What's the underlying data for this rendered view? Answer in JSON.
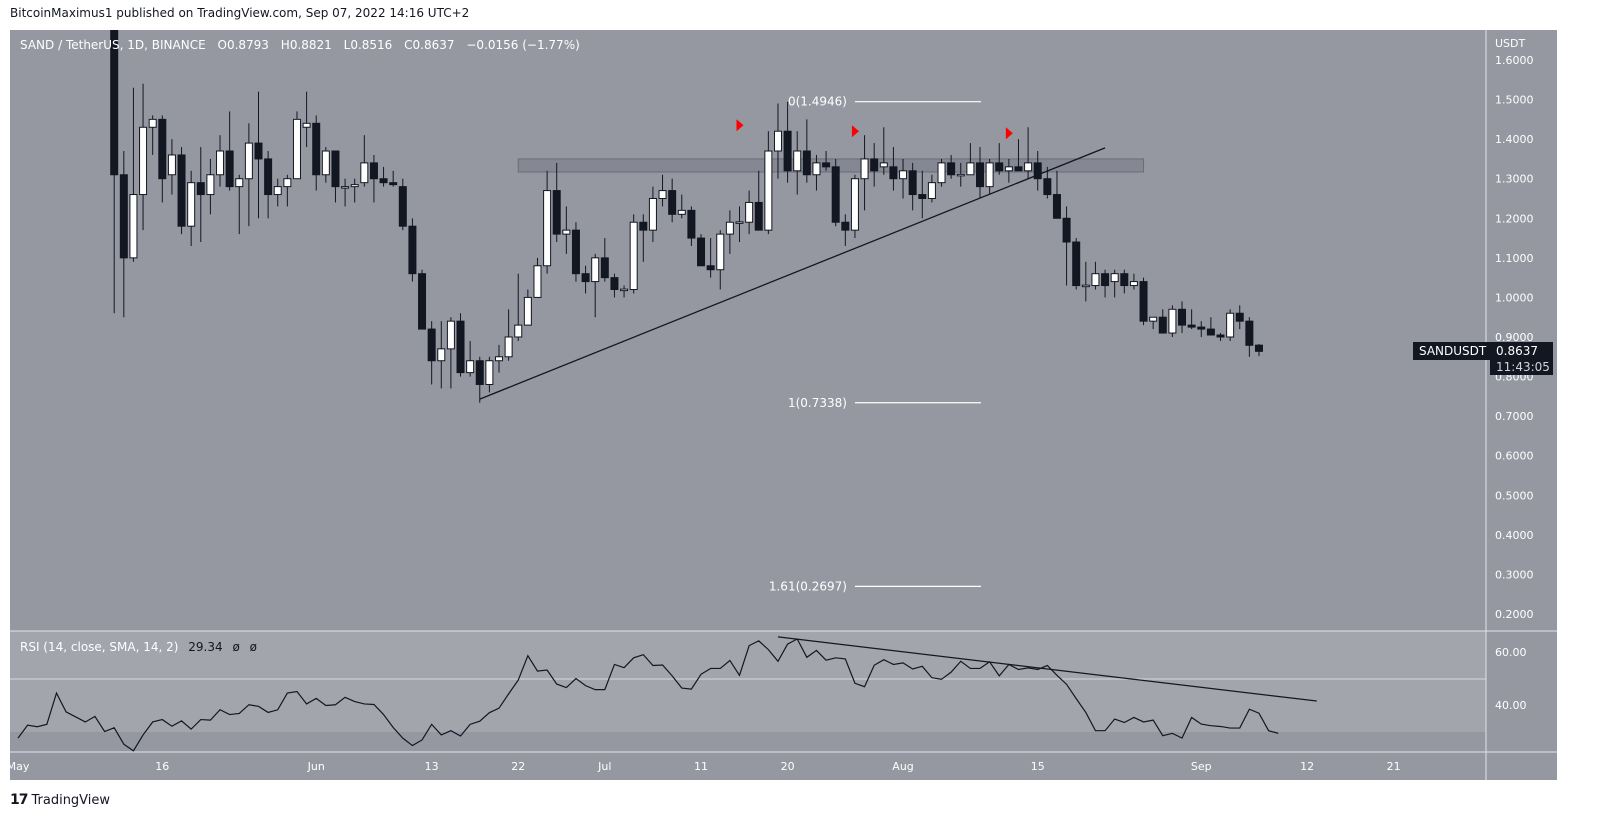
{
  "header": {
    "published": "BitcoinMaximus1 published on TradingView.com, Sep 07, 2022 14:16 UTC+2"
  },
  "legend": {
    "symbol": "SAND / TetherUS, 1D, BINANCE",
    "open_label": "O",
    "open": "0.8793",
    "high_label": "H",
    "high": "0.8821",
    "low_label": "L",
    "low": "0.8516",
    "close_label": "C",
    "close": "0.8637",
    "change": "−0.0156 (−1.77%)"
  },
  "price_axis": {
    "currency": "USDT",
    "ticks": [
      "1.6000",
      "1.5000",
      "1.4000",
      "1.3000",
      "1.2000",
      "1.1000",
      "1.0000",
      "0.9000",
      "0.8000",
      "0.7000",
      "0.6000",
      "0.5000",
      "0.4000",
      "0.3000",
      "0.2000"
    ]
  },
  "price_tag": {
    "symbol": "SANDUSDT",
    "price": "0.8637",
    "countdown": "11:43:05"
  },
  "rsi": {
    "title": "RSI (14, close, SMA, 14, 2)",
    "value": "29.34",
    "na1": "ø",
    "na2": "ø",
    "ticks": [
      "60.00",
      "40.00"
    ]
  },
  "time_axis": [
    {
      "label": "May",
      "day": 0
    },
    {
      "label": "16",
      "day": 15
    },
    {
      "label": "Jun",
      "day": 31
    },
    {
      "label": "13",
      "day": 43
    },
    {
      "label": "22",
      "day": 52
    },
    {
      "label": "Jul",
      "day": 61
    },
    {
      "label": "11",
      "day": 71
    },
    {
      "label": "20",
      "day": 80
    },
    {
      "label": "Aug",
      "day": 92
    },
    {
      "label": "15",
      "day": 106
    },
    {
      "label": "Sep",
      "day": 123
    },
    {
      "label": "12",
      "day": 134
    },
    {
      "label": "21",
      "day": 143
    }
  ],
  "footer": {
    "brand": "TradingView"
  },
  "colors": {
    "pane": "#9598a1",
    "rsi_band": "#a3a5ad",
    "candle_down": "#131722",
    "candle_up": "#ffffff",
    "marker": "#ff0000"
  },
  "chart_data": {
    "type": "candlestick",
    "symbol": "SANDUSDT",
    "interval": "1D",
    "day_origin": "2022-05-01",
    "candles_first_day": 10,
    "candles_ohlc": [
      [
        1.75,
        1.9,
        0.96,
        1.31
      ],
      [
        1.31,
        1.37,
        0.95,
        1.1
      ],
      [
        1.1,
        1.53,
        1.09,
        1.26
      ],
      [
        1.26,
        1.54,
        1.17,
        1.43
      ],
      [
        1.43,
        1.46,
        1.36,
        1.45
      ],
      [
        1.45,
        1.46,
        1.24,
        1.3
      ],
      [
        1.31,
        1.4,
        1.26,
        1.36
      ],
      [
        1.36,
        1.38,
        1.16,
        1.18
      ],
      [
        1.18,
        1.32,
        1.13,
        1.29
      ],
      [
        1.29,
        1.38,
        1.14,
        1.26
      ],
      [
        1.26,
        1.35,
        1.21,
        1.31
      ],
      [
        1.31,
        1.41,
        1.28,
        1.37
      ],
      [
        1.37,
        1.47,
        1.27,
        1.28
      ],
      [
        1.28,
        1.31,
        1.16,
        1.3
      ],
      [
        1.3,
        1.44,
        1.18,
        1.39
      ],
      [
        1.39,
        1.52,
        1.2,
        1.35
      ],
      [
        1.35,
        1.37,
        1.2,
        1.26
      ],
      [
        1.26,
        1.3,
        1.23,
        1.28
      ],
      [
        1.28,
        1.31,
        1.23,
        1.3
      ],
      [
        1.3,
        1.47,
        1.3,
        1.45
      ],
      [
        1.43,
        1.52,
        1.38,
        1.44
      ],
      [
        1.44,
        1.46,
        1.27,
        1.31
      ],
      [
        1.31,
        1.38,
        1.29,
        1.37
      ],
      [
        1.37,
        1.37,
        1.24,
        1.28
      ],
      [
        1.28,
        1.3,
        1.23,
        1.28
      ],
      [
        1.28,
        1.3,
        1.24,
        1.285
      ],
      [
        1.29,
        1.41,
        1.28,
        1.34
      ],
      [
        1.34,
        1.36,
        1.24,
        1.3
      ],
      [
        1.3,
        1.33,
        1.28,
        1.29
      ],
      [
        1.29,
        1.32,
        1.28,
        1.285
      ],
      [
        1.28,
        1.3,
        1.17,
        1.18
      ],
      [
        1.18,
        1.2,
        1.04,
        1.06
      ],
      [
        1.06,
        1.07,
        0.92,
        0.92
      ],
      [
        0.92,
        0.94,
        0.78,
        0.84
      ],
      [
        0.84,
        0.94,
        0.77,
        0.87
      ],
      [
        0.87,
        0.95,
        0.77,
        0.94
      ],
      [
        0.94,
        0.96,
        0.8,
        0.81
      ],
      [
        0.81,
        0.89,
        0.8,
        0.84
      ],
      [
        0.84,
        0.85,
        0.7338,
        0.78
      ],
      [
        0.78,
        0.85,
        0.76,
        0.84
      ],
      [
        0.84,
        0.88,
        0.81,
        0.85
      ],
      [
        0.85,
        0.97,
        0.84,
        0.9
      ],
      [
        0.9,
        1.06,
        0.89,
        0.93
      ],
      [
        0.93,
        1.02,
        0.93,
        1.0
      ],
      [
        1.0,
        1.1,
        1.0,
        1.08
      ],
      [
        1.08,
        1.32,
        1.06,
        1.27
      ],
      [
        1.27,
        1.34,
        1.14,
        1.16
      ],
      [
        1.16,
        1.23,
        1.11,
        1.17
      ],
      [
        1.17,
        1.19,
        1.04,
        1.06
      ],
      [
        1.06,
        1.08,
        1.01,
        1.04
      ],
      [
        1.04,
        1.11,
        0.95,
        1.1
      ],
      [
        1.1,
        1.15,
        1.04,
        1.05
      ],
      [
        1.05,
        1.06,
        1.0,
        1.02
      ],
      [
        1.02,
        1.03,
        1.0,
        1.021
      ],
      [
        1.02,
        1.21,
        1.01,
        1.19
      ],
      [
        1.19,
        1.21,
        1.09,
        1.17
      ],
      [
        1.17,
        1.28,
        1.14,
        1.25
      ],
      [
        1.25,
        1.31,
        1.23,
        1.27
      ],
      [
        1.27,
        1.3,
        1.19,
        1.21
      ],
      [
        1.21,
        1.26,
        1.2,
        1.22
      ],
      [
        1.22,
        1.23,
        1.13,
        1.15
      ],
      [
        1.15,
        1.16,
        1.08,
        1.08
      ],
      [
        1.08,
        1.15,
        1.05,
        1.07
      ],
      [
        1.07,
        1.17,
        1.02,
        1.16
      ],
      [
        1.16,
        1.22,
        1.11,
        1.19
      ],
      [
        1.19,
        1.23,
        1.14,
        1.191
      ],
      [
        1.19,
        1.27,
        1.16,
        1.24
      ],
      [
        1.24,
        1.32,
        1.17,
        1.17
      ],
      [
        1.17,
        1.42,
        1.16,
        1.37
      ],
      [
        1.37,
        1.49,
        1.3,
        1.42
      ],
      [
        1.42,
        1.4946,
        1.29,
        1.32
      ],
      [
        1.32,
        1.42,
        1.26,
        1.37
      ],
      [
        1.37,
        1.45,
        1.29,
        1.31
      ],
      [
        1.31,
        1.36,
        1.27,
        1.34
      ],
      [
        1.34,
        1.37,
        1.32,
        1.33
      ],
      [
        1.33,
        1.35,
        1.18,
        1.19
      ],
      [
        1.19,
        1.21,
        1.13,
        1.17
      ],
      [
        1.17,
        1.31,
        1.15,
        1.3
      ],
      [
        1.3,
        1.41,
        1.22,
        1.35
      ],
      [
        1.35,
        1.39,
        1.28,
        1.32
      ],
      [
        1.33,
        1.43,
        1.31,
        1.34
      ],
      [
        1.33,
        1.38,
        1.27,
        1.3
      ],
      [
        1.3,
        1.35,
        1.25,
        1.32
      ],
      [
        1.32,
        1.34,
        1.22,
        1.26
      ],
      [
        1.26,
        1.32,
        1.2,
        1.25
      ],
      [
        1.25,
        1.31,
        1.24,
        1.29
      ],
      [
        1.29,
        1.35,
        1.28,
        1.34
      ],
      [
        1.34,
        1.36,
        1.3,
        1.31
      ],
      [
        1.31,
        1.34,
        1.28,
        1.311
      ],
      [
        1.31,
        1.39,
        1.31,
        1.34
      ],
      [
        1.34,
        1.38,
        1.25,
        1.28
      ],
      [
        1.28,
        1.35,
        1.26,
        1.34
      ],
      [
        1.34,
        1.39,
        1.31,
        1.32
      ],
      [
        1.32,
        1.35,
        1.29,
        1.33
      ],
      [
        1.33,
        1.4,
        1.32,
        1.32
      ],
      [
        1.32,
        1.43,
        1.3,
        1.34
      ],
      [
        1.34,
        1.37,
        1.27,
        1.3
      ],
      [
        1.3,
        1.33,
        1.25,
        1.26
      ],
      [
        1.26,
        1.32,
        1.2,
        1.2
      ],
      [
        1.2,
        1.23,
        1.03,
        1.14
      ],
      [
        1.14,
        1.15,
        1.02,
        1.03
      ],
      [
        1.03,
        1.09,
        0.99,
        1.031
      ],
      [
        1.03,
        1.09,
        1.02,
        1.06
      ],
      [
        1.06,
        1.07,
        1.0,
        1.03
      ],
      [
        1.04,
        1.07,
        1.0,
        1.06
      ],
      [
        1.06,
        1.07,
        1.01,
        1.03
      ],
      [
        1.03,
        1.06,
        1.02,
        1.04
      ],
      [
        1.04,
        1.05,
        0.93,
        0.94
      ],
      [
        0.94,
        0.95,
        0.92,
        0.95
      ],
      [
        0.95,
        0.97,
        0.91,
        0.91
      ],
      [
        0.91,
        0.98,
        0.9,
        0.97
      ],
      [
        0.97,
        0.99,
        0.91,
        0.93
      ],
      [
        0.93,
        0.97,
        0.92,
        0.925
      ],
      [
        0.925,
        0.94,
        0.9,
        0.92
      ],
      [
        0.92,
        0.95,
        0.91,
        0.905
      ],
      [
        0.905,
        0.91,
        0.89,
        0.9
      ],
      [
        0.9,
        0.97,
        0.89,
        0.96
      ],
      [
        0.96,
        0.98,
        0.92,
        0.94
      ],
      [
        0.94,
        0.95,
        0.85,
        0.879
      ],
      [
        0.8793,
        0.8821,
        0.8516,
        0.8637
      ]
    ],
    "rsi_first_day": 0,
    "rsi_values": [
      27.5,
      32.4,
      31.8,
      32.7,
      44.5,
      37.4,
      35.5,
      33.6,
      35.7,
      30.0,
      31.4,
      25.2,
      22.7,
      28.7,
      33.6,
      34.5,
      32.0,
      34.0,
      30.9,
      34.5,
      34.3,
      38.2,
      36.4,
      36.8,
      40.1,
      39.5,
      37.2,
      38.2,
      44.5,
      45.1,
      40.4,
      42.5,
      39.8,
      40.1,
      42.9,
      41.3,
      40.4,
      40.2,
      36.4,
      31.5,
      27.5,
      24.7,
      26.8,
      32.7,
      28.7,
      30.3,
      28.3,
      32.7,
      33.9,
      37.1,
      38.8,
      44.2,
      49.4,
      58.6,
      52.8,
      53.2,
      47.9,
      46.6,
      50.0,
      47.3,
      45.8,
      45.8,
      55.3,
      54.1,
      57.8,
      59.0,
      54.9,
      55.1,
      51.0,
      46.4,
      46.0,
      51.6,
      53.8,
      53.8,
      56.8,
      51.2,
      62.4,
      64.2,
      60.9,
      56.5,
      63.0,
      64.9,
      58.0,
      60.6,
      56.9,
      57.8,
      57.4,
      48.2,
      46.9,
      55.0,
      57.1,
      55.3,
      55.9,
      53.6,
      54.6,
      50.3,
      49.7,
      52.4,
      56.5,
      53.8,
      53.8,
      56.3,
      51.0,
      55.3,
      53.4,
      54.0,
      53.4,
      54.9,
      51.2,
      47.8,
      42.4,
      37.2,
      30.3,
      30.3,
      34.7,
      33.4,
      35.3,
      33.6,
      34.3,
      28.4,
      29.3,
      27.5,
      35.3,
      32.8,
      32.2,
      31.9,
      31.3,
      31.3,
      38.4,
      36.9,
      30.3,
      29.34
    ],
    "rsi_bands": {
      "upper": 70,
      "middle": 50,
      "lower": 30
    },
    "price_range": [
      0.2,
      1.6
    ],
    "rsi_range_ticks": [
      60,
      40
    ],
    "annotations": {
      "ascending_trendline": {
        "from": {
          "day": 48,
          "price": 0.743
        },
        "to": {
          "day": 113,
          "price": 1.378
        }
      },
      "resistance_zone": {
        "from_day": 52,
        "to_day": 117,
        "top": 1.35,
        "bottom": 1.317
      },
      "fib_levels": [
        {
          "label": "0(1.4946)",
          "price": 1.4946,
          "from_day": 87,
          "to_day": 100
        },
        {
          "label": "1(0.7338)",
          "price": 0.7338,
          "from_day": 87,
          "to_day": 100
        },
        {
          "label": "1.61(0.2697)",
          "price": 0.2697,
          "from_day": 87,
          "to_day": 100
        }
      ],
      "deviation_markers": [
        {
          "day": 75,
          "price": 1.435
        },
        {
          "day": 87,
          "price": 1.42
        },
        {
          "day": 103,
          "price": 1.415
        }
      ],
      "rsi_trendline": {
        "from": {
          "day": 79,
          "value": 65.7
        },
        "to": {
          "day": 135,
          "value": 41.5
        }
      }
    }
  }
}
